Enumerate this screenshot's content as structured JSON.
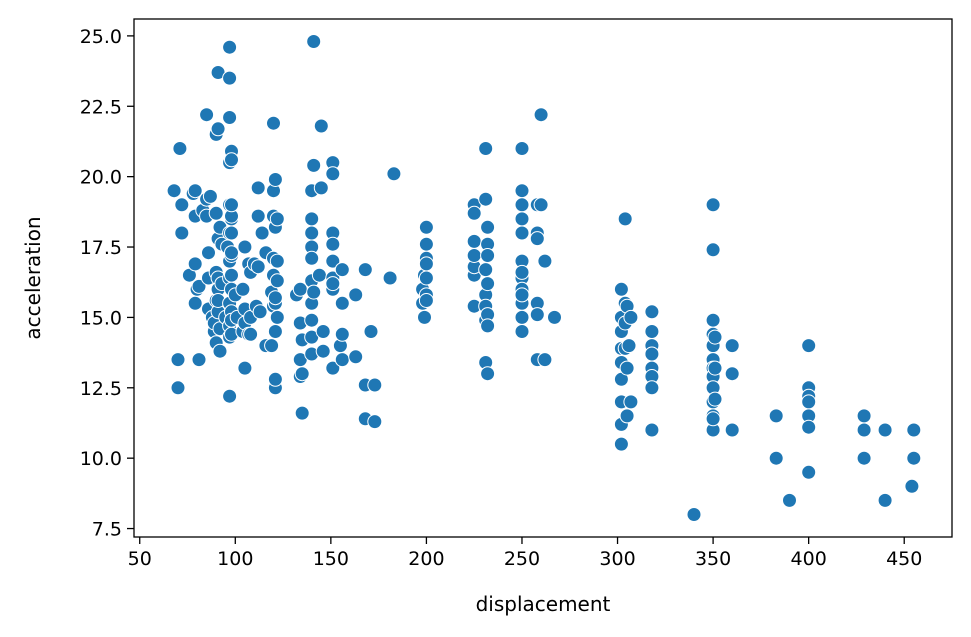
{
  "chart_data": {
    "type": "scatter",
    "title": "",
    "xlabel": "displacement",
    "ylabel": "acceleration",
    "xlim": [
      47,
      475
    ],
    "ylim": [
      7.2,
      25.6
    ],
    "xticks": [
      50,
      100,
      150,
      200,
      250,
      300,
      350,
      400,
      450
    ],
    "yticks": [
      7.5,
      10.0,
      12.5,
      15.0,
      17.5,
      20.0,
      22.5,
      25.0
    ],
    "xtick_labels": [
      "50",
      "100",
      "150",
      "200",
      "250",
      "300",
      "350",
      "400",
      "450"
    ],
    "ytick_labels": [
      "7.5",
      "10.0",
      "12.5",
      "15.0",
      "17.5",
      "20.0",
      "22.5",
      "25.0"
    ],
    "grid": false,
    "color": "#1f77b4",
    "points": [
      [
        68,
        19.5
      ],
      [
        70,
        13.5
      ],
      [
        70,
        12.5
      ],
      [
        71,
        21.0
      ],
      [
        72,
        19.0
      ],
      [
        72,
        18.0
      ],
      [
        76,
        16.5
      ],
      [
        78,
        19.4
      ],
      [
        79,
        19.5
      ],
      [
        79,
        16.9
      ],
      [
        79,
        15.5
      ],
      [
        79,
        18.6
      ],
      [
        80,
        16.0
      ],
      [
        81,
        13.5
      ],
      [
        81,
        16.1
      ],
      [
        83,
        18.8
      ],
      [
        85,
        19.2
      ],
      [
        85,
        18.6
      ],
      [
        85,
        22.2
      ],
      [
        86,
        16.4
      ],
      [
        86,
        17.3
      ],
      [
        86,
        15.3
      ],
      [
        87,
        19.3
      ],
      [
        88,
        15.0
      ],
      [
        89,
        14.5
      ],
      [
        89,
        14.8
      ],
      [
        90,
        21.5
      ],
      [
        90,
        16.6
      ],
      [
        90,
        15.6
      ],
      [
        90,
        14.1
      ],
      [
        90,
        18.7
      ],
      [
        91,
        21.7
      ],
      [
        91,
        17.8
      ],
      [
        91,
        16.4
      ],
      [
        91,
        15.2
      ],
      [
        91,
        23.7
      ],
      [
        91,
        16.0
      ],
      [
        91,
        15.6
      ],
      [
        92,
        13.8
      ],
      [
        92,
        18.2
      ],
      [
        92,
        14.6
      ],
      [
        93,
        16.2
      ],
      [
        93,
        17.6
      ],
      [
        95,
        15.0
      ],
      [
        96,
        17.5
      ],
      [
        97,
        24.6
      ],
      [
        97,
        23.5
      ],
      [
        97,
        20.5
      ],
      [
        97,
        19.0
      ],
      [
        97,
        17.0
      ],
      [
        97,
        15.5
      ],
      [
        97,
        14.7
      ],
      [
        97,
        18.0
      ],
      [
        97,
        22.1
      ],
      [
        97,
        12.2
      ],
      [
        97,
        16.4
      ],
      [
        97,
        14.3
      ],
      [
        98,
        20.9
      ],
      [
        98,
        20.6
      ],
      [
        98,
        18.5
      ],
      [
        98,
        18.0
      ],
      [
        98,
        17.2
      ],
      [
        98,
        16.5
      ],
      [
        98,
        16.0
      ],
      [
        98,
        15.2
      ],
      [
        98,
        14.4
      ],
      [
        98,
        17.3
      ],
      [
        98,
        18.6
      ],
      [
        98,
        14.9
      ],
      [
        98,
        19.0
      ],
      [
        100,
        15.8
      ],
      [
        101,
        15.0
      ],
      [
        104,
        16.0
      ],
      [
        104,
        14.5
      ],
      [
        105,
        14.8
      ],
      [
        105,
        17.5
      ],
      [
        105,
        15.3
      ],
      [
        105,
        13.2
      ],
      [
        107,
        16.9
      ],
      [
        107,
        14.4
      ],
      [
        108,
        15.0
      ],
      [
        108,
        16.6
      ],
      [
        108,
        14.4
      ],
      [
        110,
        16.9
      ],
      [
        111,
        15.4
      ],
      [
        112,
        19.6
      ],
      [
        112,
        18.6
      ],
      [
        112,
        16.8
      ],
      [
        113,
        15.2
      ],
      [
        114,
        18.0
      ],
      [
        116,
        14.0
      ],
      [
        116,
        17.3
      ],
      [
        119,
        14.0
      ],
      [
        119,
        15.9
      ],
      [
        120,
        21.9
      ],
      [
        120,
        19.5
      ],
      [
        120,
        17.1
      ],
      [
        120,
        18.6
      ],
      [
        120,
        16.5
      ],
      [
        120,
        15.4
      ],
      [
        121,
        15.5
      ],
      [
        121,
        12.5
      ],
      [
        121,
        12.8
      ],
      [
        121,
        14.5
      ],
      [
        121,
        15.7
      ],
      [
        121,
        19.9
      ],
      [
        121,
        18.2
      ],
      [
        122,
        18.5
      ],
      [
        122,
        17.0
      ],
      [
        122,
        16.3
      ],
      [
        122,
        15.0
      ],
      [
        132,
        15.8
      ],
      [
        134,
        12.9
      ],
      [
        134,
        13.5
      ],
      [
        134,
        14.8
      ],
      [
        134,
        16.0
      ],
      [
        135,
        11.6
      ],
      [
        135,
        13.0
      ],
      [
        135,
        14.2
      ],
      [
        140,
        19.5
      ],
      [
        140,
        18.5
      ],
      [
        140,
        17.5
      ],
      [
        140,
        17.1
      ],
      [
        140,
        15.5
      ],
      [
        140,
        14.9
      ],
      [
        140,
        14.3
      ],
      [
        140,
        13.7
      ],
      [
        140,
        16.3
      ],
      [
        140,
        18.0
      ],
      [
        141,
        24.8
      ],
      [
        141,
        20.4
      ],
      [
        141,
        15.9
      ],
      [
        144,
        16.5
      ],
      [
        145,
        19.6
      ],
      [
        145,
        21.8
      ],
      [
        146,
        14.5
      ],
      [
        146,
        13.8
      ],
      [
        151,
        20.5
      ],
      [
        151,
        20.1
      ],
      [
        151,
        18.0
      ],
      [
        151,
        17.6
      ],
      [
        151,
        16.4
      ],
      [
        151,
        16.0
      ],
      [
        151,
        16.2
      ],
      [
        151,
        13.2
      ],
      [
        151,
        17.0
      ],
      [
        155,
        14.0
      ],
      [
        156,
        15.5
      ],
      [
        156,
        16.7
      ],
      [
        156,
        13.5
      ],
      [
        156,
        14.4
      ],
      [
        163,
        15.8
      ],
      [
        163,
        13.6
      ],
      [
        168,
        12.6
      ],
      [
        168,
        11.4
      ],
      [
        168,
        16.7
      ],
      [
        171,
        14.5
      ],
      [
        173,
        12.6
      ],
      [
        173,
        11.3
      ],
      [
        181,
        16.4
      ],
      [
        183,
        20.1
      ],
      [
        198,
        16.0
      ],
      [
        198,
        15.5
      ],
      [
        199,
        15.0
      ],
      [
        199,
        16.5
      ],
      [
        199,
        15.0
      ],
      [
        200,
        18.2
      ],
      [
        200,
        17.6
      ],
      [
        200,
        17.1
      ],
      [
        200,
        16.9
      ],
      [
        200,
        16.4
      ],
      [
        200,
        15.8
      ],
      [
        200,
        15.6
      ],
      [
        225,
        19.0
      ],
      [
        225,
        18.7
      ],
      [
        225,
        17.7
      ],
      [
        225,
        16.5
      ],
      [
        225,
        15.4
      ],
      [
        225,
        16.8
      ],
      [
        225,
        17.2
      ],
      [
        231,
        21.0
      ],
      [
        231,
        19.2
      ],
      [
        231,
        16.7
      ],
      [
        231,
        15.8
      ],
      [
        231,
        15.4
      ],
      [
        231,
        14.9
      ],
      [
        231,
        13.4
      ],
      [
        232,
        18.2
      ],
      [
        232,
        17.6
      ],
      [
        232,
        17.2
      ],
      [
        232,
        16.2
      ],
      [
        232,
        15.1
      ],
      [
        232,
        14.7
      ],
      [
        232,
        13.0
      ],
      [
        250,
        21.0
      ],
      [
        250,
        19.5
      ],
      [
        250,
        19.0
      ],
      [
        250,
        18.5
      ],
      [
        250,
        18.0
      ],
      [
        250,
        17.0
      ],
      [
        250,
        16.4
      ],
      [
        250,
        16.0
      ],
      [
        250,
        15.5
      ],
      [
        250,
        15.0
      ],
      [
        250,
        14.5
      ],
      [
        250,
        16.6
      ],
      [
        250,
        15.8
      ],
      [
        258,
        19.0
      ],
      [
        258,
        18.0
      ],
      [
        258,
        17.8
      ],
      [
        258,
        15.5
      ],
      [
        258,
        15.1
      ],
      [
        258,
        13.5
      ],
      [
        260,
        22.2
      ],
      [
        260,
        19.0
      ],
      [
        262,
        17.0
      ],
      [
        262,
        13.5
      ],
      [
        267,
        15.0
      ],
      [
        302,
        16.0
      ],
      [
        302,
        15.0
      ],
      [
        302,
        14.5
      ],
      [
        302,
        13.9
      ],
      [
        302,
        13.4
      ],
      [
        302,
        12.8
      ],
      [
        302,
        12.0
      ],
      [
        302,
        11.2
      ],
      [
        302,
        10.5
      ],
      [
        304,
        18.5
      ],
      [
        304,
        15.5
      ],
      [
        304,
        14.8
      ],
      [
        304,
        13.9
      ],
      [
        305,
        15.4
      ],
      [
        305,
        13.2
      ],
      [
        305,
        11.5
      ],
      [
        306,
        14.0
      ],
      [
        307,
        12.0
      ],
      [
        307,
        15.0
      ],
      [
        318,
        15.2
      ],
      [
        318,
        14.5
      ],
      [
        318,
        14.0
      ],
      [
        318,
        13.7
      ],
      [
        318,
        13.2
      ],
      [
        318,
        12.9
      ],
      [
        318,
        12.5
      ],
      [
        318,
        11.0
      ],
      [
        340,
        8.0
      ],
      [
        350,
        19.0
      ],
      [
        350,
        17.4
      ],
      [
        350,
        14.9
      ],
      [
        350,
        14.4
      ],
      [
        350,
        14.0
      ],
      [
        350,
        13.5
      ],
      [
        350,
        13.2
      ],
      [
        350,
        12.9
      ],
      [
        350,
        12.5
      ],
      [
        350,
        12.0
      ],
      [
        350,
        11.5
      ],
      [
        350,
        11.0
      ],
      [
        350,
        11.4
      ],
      [
        351,
        14.3
      ],
      [
        351,
        13.2
      ],
      [
        351,
        12.1
      ],
      [
        360,
        14.0
      ],
      [
        360,
        13.0
      ],
      [
        360,
        11.0
      ],
      [
        383,
        11.5
      ],
      [
        383,
        10.0
      ],
      [
        390,
        8.5
      ],
      [
        400,
        14.0
      ],
      [
        400,
        12.5
      ],
      [
        400,
        12.2
      ],
      [
        400,
        12.0
      ],
      [
        400,
        11.5
      ],
      [
        400,
        11.1
      ],
      [
        400,
        9.5
      ],
      [
        429,
        11.5
      ],
      [
        429,
        11.0
      ],
      [
        429,
        10.0
      ],
      [
        440,
        11.0
      ],
      [
        440,
        8.5
      ],
      [
        454,
        9.0
      ],
      [
        455,
        11.0
      ],
      [
        455,
        10.0
      ]
    ]
  }
}
